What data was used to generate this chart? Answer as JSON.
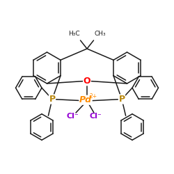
{
  "bg_color": "#ffffff",
  "bond_color": "#1a1a1a",
  "bond_lw": 1.1,
  "O_color": "#ff0000",
  "Pd_color": "#ff8c00",
  "P_color": "#b8860b",
  "Cl_color": "#9400d3",
  "Pd_label": "Pd",
  "Pd_charge": "2+",
  "O_label": "O",
  "P_label": "P",
  "Cl1_label": "Cl⁻",
  "Cl2_label": "Cl⁻",
  "Me1_label": "H₃C",
  "Me2_label": "CH₃"
}
